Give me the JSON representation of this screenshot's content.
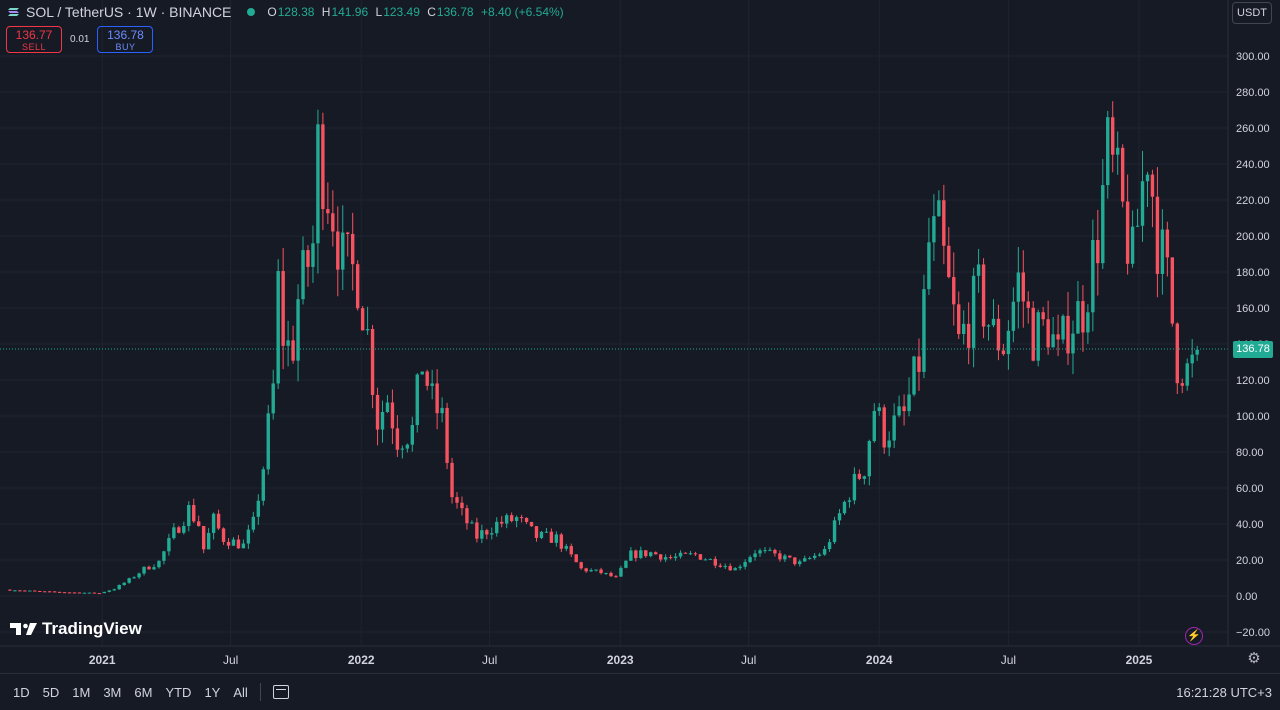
{
  "header": {
    "symbol": "SOL / TetherUS · 1W · BINANCE",
    "ohlc": {
      "o_label": "O",
      "o": "128.38",
      "h_label": "H",
      "h": "141.96",
      "l_label": "L",
      "l": "123.49",
      "c_label": "C",
      "c": "136.78",
      "change": "+8.40 (+6.54%)"
    }
  },
  "trade": {
    "sell_price": "136.77",
    "sell_label": "SELL",
    "spread": "0.01",
    "buy_price": "136.78",
    "buy_label": "BUY"
  },
  "currency_button": "USDT",
  "current_price_badge": "136.78",
  "watermark": "TradingView",
  "bottom_bar": {
    "ranges": [
      "1D",
      "5D",
      "1M",
      "3M",
      "6M",
      "YTD",
      "1Y",
      "All"
    ],
    "clock": "16:21:28 UTC+3"
  },
  "colors": {
    "up": "#22ab94",
    "down": "#f7525f",
    "background": "#161a25",
    "grid": "#202431",
    "text": "#d1d4dc"
  },
  "chart_data": {
    "type": "candlestick",
    "title": "SOL / TetherUS · 1W · BINANCE",
    "y_ticks": [
      "300.00",
      "280.00",
      "260.00",
      "240.00",
      "220.00",
      "200.00",
      "180.00",
      "160.00",
      "140.00",
      "120.00",
      "100.00",
      "80.00",
      "60.00",
      "40.00",
      "20.00",
      "0.00",
      "−20.00"
    ],
    "x_ticks": [
      "2021",
      "Jul",
      "2022",
      "Jul",
      "2023",
      "Jul",
      "2024",
      "Jul",
      "2025"
    ],
    "ylim": [
      -20,
      300
    ],
    "xlim": [
      "2020-08-10",
      "2025-03-28"
    ],
    "current_price": 136.78,
    "grid": true,
    "points": [
      {
        "x": "2020-08-24",
        "y": 3.5
      },
      {
        "x": "2020-10-05",
        "y": 2.5
      },
      {
        "x": "2020-11-16",
        "y": 2.0
      },
      {
        "x": "2020-12-28",
        "y": 1.6
      },
      {
        "x": "2021-01-18",
        "y": 4.0
      },
      {
        "x": "2021-02-08",
        "y": 9.0
      },
      {
        "x": "2021-03-01",
        "y": 15.0
      },
      {
        "x": "2021-03-22",
        "y": 19.0
      },
      {
        "x": "2021-04-12",
        "y": 35.0
      },
      {
        "x": "2021-05-03",
        "y": 48.0
      },
      {
        "x": "2021-05-17",
        "y": 40.0
      },
      {
        "x": "2021-05-24",
        "y": 26.0
      },
      {
        "x": "2021-06-07",
        "y": 42.0
      },
      {
        "x": "2021-06-21",
        "y": 32.0
      },
      {
        "x": "2021-07-05",
        "y": 30.0
      },
      {
        "x": "2021-07-19",
        "y": 28.0
      },
      {
        "x": "2021-08-02",
        "y": 40.0
      },
      {
        "x": "2021-08-16",
        "y": 72.0
      },
      {
        "x": "2021-08-30",
        "y": 115.0
      },
      {
        "x": "2021-09-06",
        "y": 172.0
      },
      {
        "x": "2021-09-13",
        "y": 145.0
      },
      {
        "x": "2021-09-20",
        "y": 138.0
      },
      {
        "x": "2021-09-27",
        "y": 140.0
      },
      {
        "x": "2021-10-04",
        "y": 165.0
      },
      {
        "x": "2021-10-25",
        "y": 195.0
      },
      {
        "x": "2021-11-01",
        "y": 248.0
      },
      {
        "x": "2021-11-08",
        "y": 240.0
      },
      {
        "x": "2021-11-22",
        "y": 215.0
      },
      {
        "x": "2021-12-06",
        "y": 185.0
      },
      {
        "x": "2021-12-27",
        "y": 178.0
      },
      {
        "x": "2022-01-10",
        "y": 145.0
      },
      {
        "x": "2022-01-24",
        "y": 98.0
      },
      {
        "x": "2022-02-07",
        "y": 110.0
      },
      {
        "x": "2022-02-21",
        "y": 88.0
      },
      {
        "x": "2022-03-14",
        "y": 92.0
      },
      {
        "x": "2022-03-28",
        "y": 130.0
      },
      {
        "x": "2022-04-11",
        "y": 108.0
      },
      {
        "x": "2022-04-25",
        "y": 98.0
      },
      {
        "x": "2022-05-09",
        "y": 55.0
      },
      {
        "x": "2022-05-23",
        "y": 45.0
      },
      {
        "x": "2022-06-13",
        "y": 33.0
      },
      {
        "x": "2022-07-11",
        "y": 40.0
      },
      {
        "x": "2022-08-08",
        "y": 43.0
      },
      {
        "x": "2022-09-05",
        "y": 33.0
      },
      {
        "x": "2022-10-03",
        "y": 32.0
      },
      {
        "x": "2022-11-07",
        "y": 15.0
      },
      {
        "x": "2022-12-05",
        "y": 13.0
      },
      {
        "x": "2022-12-26",
        "y": 10.0
      },
      {
        "x": "2023-01-16",
        "y": 23.0
      },
      {
        "x": "2023-02-13",
        "y": 24.0
      },
      {
        "x": "2023-03-13",
        "y": 21.0
      },
      {
        "x": "2023-04-17",
        "y": 23.0
      },
      {
        "x": "2023-06-12",
        "y": 15.0
      },
      {
        "x": "2023-07-10",
        "y": 25.0
      },
      {
        "x": "2023-08-14",
        "y": 22.0
      },
      {
        "x": "2023-09-11",
        "y": 18.0
      },
      {
        "x": "2023-10-16",
        "y": 25.0
      },
      {
        "x": "2023-11-06",
        "y": 45.0
      },
      {
        "x": "2023-11-20",
        "y": 58.0
      },
      {
        "x": "2023-12-11",
        "y": 72.0
      },
      {
        "x": "2023-12-25",
        "y": 105.0
      },
      {
        "x": "2024-01-08",
        "y": 90.0
      },
      {
        "x": "2024-02-05",
        "y": 100.0
      },
      {
        "x": "2024-02-26",
        "y": 130.0
      },
      {
        "x": "2024-03-11",
        "y": 195.0
      },
      {
        "x": "2024-03-25",
        "y": 200.0
      },
      {
        "x": "2024-04-08",
        "y": 170.0
      },
      {
        "x": "2024-04-22",
        "y": 140.0
      },
      {
        "x": "2024-05-20",
        "y": 168.0
      },
      {
        "x": "2024-06-10",
        "y": 145.0
      },
      {
        "x": "2024-06-24",
        "y": 140.0
      },
      {
        "x": "2024-07-15",
        "y": 175.0
      },
      {
        "x": "2024-08-05",
        "y": 145.0
      },
      {
        "x": "2024-08-26",
        "y": 150.0
      },
      {
        "x": "2024-09-09",
        "y": 133.0
      },
      {
        "x": "2024-09-23",
        "y": 150.0
      },
      {
        "x": "2024-10-14",
        "y": 160.0
      },
      {
        "x": "2024-11-04",
        "y": 200.0
      },
      {
        "x": "2024-11-18",
        "y": 245.0
      },
      {
        "x": "2024-12-02",
        "y": 225.0
      },
      {
        "x": "2024-12-23",
        "y": 185.0
      },
      {
        "x": "2025-01-13",
        "y": 250.0
      },
      {
        "x": "2025-01-27",
        "y": 200.0
      },
      {
        "x": "2025-02-10",
        "y": 175.0
      },
      {
        "x": "2025-02-24",
        "y": 130.0
      },
      {
        "x": "2025-03-10",
        "y": 125.0
      },
      {
        "x": "2025-03-17",
        "y": 128.0
      },
      {
        "x": "2025-03-24",
        "y": 136.78
      }
    ]
  }
}
